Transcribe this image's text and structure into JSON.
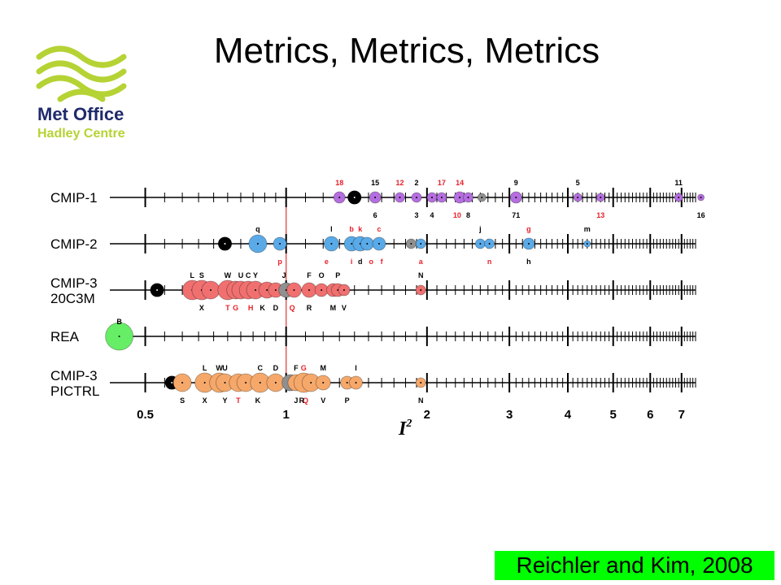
{
  "slide": {
    "title": "Metrics, Metrics, Metrics",
    "logo": {
      "line1": "Met Office",
      "line2": "Hadley Centre",
      "brand_color": "#b5d334",
      "text_color": "#1f2a6b"
    },
    "citation": "Reichler and Kim, 2008",
    "citation_bg": "#00ff00"
  },
  "chart_data": {
    "type": "scatter",
    "title": "",
    "xlabel": "I²",
    "ylabel": "",
    "x_scale": "log",
    "xlim": [
      0.42,
      7.5
    ],
    "x_ticks": [
      0.5,
      1,
      2,
      3,
      4,
      5,
      6,
      7
    ],
    "x_tick_labels": [
      "0.5",
      "1",
      "2",
      "3",
      "4",
      "5",
      "6",
      "7"
    ],
    "reference_line_x": 1,
    "colors": {
      "cmip1": "#b56ee0",
      "cmip2": "#5aaae8",
      "cmip3_20c3m": "#f07070",
      "rea": "#66ee66",
      "cmip3_pictrl": "#f5a86a",
      "multimodel_mean": "#000000",
      "median_model": "#909090",
      "reference_line": "#e05a5a",
      "label_red": "#e8202a"
    },
    "rows": [
      {
        "name": "CMIP-1",
        "color_key": "cmip1",
        "points": [
          {
            "label": "18",
            "x": 1.3,
            "r": 7,
            "label_pos": "top",
            "label_color": "red"
          },
          {
            "label": "",
            "x": 1.4,
            "r": 8,
            "kind": "mean"
          },
          {
            "label": "15",
            "x": 1.55,
            "r": 7,
            "label_pos": "top"
          },
          {
            "label": "6",
            "x": 1.55,
            "r": 0,
            "label_pos": "bottom"
          },
          {
            "label": "12",
            "x": 1.75,
            "r": 6,
            "label_pos": "top",
            "label_color": "red"
          },
          {
            "label": "2",
            "x": 1.9,
            "r": 6,
            "label_pos": "top"
          },
          {
            "label": "3",
            "x": 1.9,
            "r": 0,
            "label_pos": "bottom"
          },
          {
            "label": "",
            "x": 2.05,
            "r": 6
          },
          {
            "label": "4",
            "x": 2.05,
            "r": 0,
            "label_pos": "bottom"
          },
          {
            "label": "17",
            "x": 2.15,
            "r": 6,
            "label_pos": "top",
            "label_color": "red"
          },
          {
            "label": "14",
            "x": 2.35,
            "r": 7,
            "label_pos": "top",
            "label_color": "red"
          },
          {
            "label": "10",
            "x": 2.32,
            "r": 0,
            "label_pos": "bottom",
            "label_color": "red"
          },
          {
            "label": "8",
            "x": 2.45,
            "r": 6,
            "label_pos": "bottom"
          },
          {
            "label": "",
            "x": 2.62,
            "r": 5,
            "kind": "median"
          },
          {
            "label": "9",
            "x": 3.1,
            "r": 7,
            "label_pos": "top"
          },
          {
            "label": "71",
            "x": 3.1,
            "r": 0,
            "label_pos": "bottom"
          },
          {
            "label": "5",
            "x": 4.2,
            "r": 5,
            "label_pos": "top"
          },
          {
            "label": "13",
            "x": 4.7,
            "r": 5,
            "label_pos": "bottom",
            "label_color": "red"
          },
          {
            "label": "11",
            "x": 6.9,
            "r": 5,
            "label_pos": "top"
          },
          {
            "label": "16",
            "x": 7.7,
            "r": 4,
            "label_pos": "bottom"
          }
        ]
      },
      {
        "name": "CMIP-2",
        "color_key": "cmip2",
        "points": [
          {
            "label": "",
            "x": 0.74,
            "r": 8,
            "kind": "mean"
          },
          {
            "label": "q",
            "x": 0.87,
            "r": 11,
            "label_pos": "top"
          },
          {
            "label": "p",
            "x": 0.97,
            "r": 8,
            "label_pos": "bottom",
            "label_color": "red"
          },
          {
            "label": "l",
            "x": 1.25,
            "r": 9,
            "label_pos": "top"
          },
          {
            "label": "e",
            "x": 1.22,
            "r": 0,
            "label_pos": "bottom",
            "label_color": "red"
          },
          {
            "label": "b",
            "x": 1.38,
            "r": 9,
            "label_pos": "top",
            "label_color": "red"
          },
          {
            "label": "i",
            "x": 1.38,
            "r": 0,
            "label_pos": "bottom",
            "label_color": "red"
          },
          {
            "label": "k",
            "x": 1.44,
            "r": 9,
            "label_pos": "top",
            "label_color": "red"
          },
          {
            "label": "d",
            "x": 1.44,
            "r": 0,
            "label_pos": "bottom"
          },
          {
            "label": "",
            "x": 1.49,
            "r": 8
          },
          {
            "label": "o",
            "x": 1.52,
            "r": 0,
            "label_pos": "bottom",
            "label_color": "red"
          },
          {
            "label": "c",
            "x": 1.58,
            "r": 8,
            "label_pos": "top",
            "label_color": "red"
          },
          {
            "label": "f",
            "x": 1.6,
            "r": 0,
            "label_pos": "bottom",
            "label_color": "red"
          },
          {
            "label": "",
            "x": 1.85,
            "r": 6,
            "kind": "median"
          },
          {
            "label": "a",
            "x": 1.94,
            "r": 6,
            "label_pos": "bottom",
            "label_color": "red"
          },
          {
            "label": "j",
            "x": 2.6,
            "r": 6,
            "label_pos": "top"
          },
          {
            "label": "",
            "x": 2.72,
            "r": 6
          },
          {
            "label": "n",
            "x": 2.72,
            "r": 0,
            "label_pos": "bottom",
            "label_color": "red"
          },
          {
            "label": "g",
            "x": 3.3,
            "r": 7,
            "label_pos": "top",
            "label_color": "red"
          },
          {
            "label": "h",
            "x": 3.3,
            "r": 0,
            "label_pos": "bottom"
          },
          {
            "label": "m",
            "x": 4.4,
            "r": 4,
            "label_pos": "top"
          }
        ]
      },
      {
        "name": "CMIP-3\n20C3M",
        "color_key": "cmip3_20c3m",
        "points": [
          {
            "label": "",
            "x": 0.53,
            "r": 8,
            "kind": "mean"
          },
          {
            "label": "L",
            "x": 0.63,
            "r": 12,
            "label_pos": "top"
          },
          {
            "label": "S",
            "x": 0.66,
            "r": 12,
            "label_pos": "top"
          },
          {
            "label": "X",
            "x": 0.66,
            "r": 0,
            "label_pos": "bottom"
          },
          {
            "label": "",
            "x": 0.69,
            "r": 11
          },
          {
            "label": "W",
            "x": 0.75,
            "r": 12,
            "label_pos": "top"
          },
          {
            "label": "T",
            "x": 0.75,
            "r": 0,
            "label_pos": "bottom",
            "label_color": "red"
          },
          {
            "label": "G",
            "x": 0.78,
            "r": 11,
            "label_pos": "bottom",
            "label_color": "red"
          },
          {
            "label": "U",
            "x": 0.8,
            "r": 11,
            "label_pos": "top"
          },
          {
            "label": "C",
            "x": 0.83,
            "r": 11,
            "label_pos": "top"
          },
          {
            "label": "H",
            "x": 0.84,
            "r": 0,
            "label_pos": "bottom",
            "label_color": "red"
          },
          {
            "label": "Y",
            "x": 0.86,
            "r": 11,
            "label_pos": "top"
          },
          {
            "label": "K",
            "x": 0.89,
            "r": 0,
            "label_pos": "bottom"
          },
          {
            "label": "",
            "x": 0.91,
            "r": 10
          },
          {
            "label": "D",
            "x": 0.95,
            "r": 9,
            "label_pos": "bottom"
          },
          {
            "label": "J",
            "x": 0.99,
            "r": 0,
            "label_pos": "top"
          },
          {
            "label": "",
            "x": 1.0,
            "r": 9,
            "kind": "median"
          },
          {
            "label": "Q",
            "x": 1.03,
            "r": 0,
            "label_pos": "bottom",
            "label_color": "red"
          },
          {
            "label": "",
            "x": 1.04,
            "r": 9
          },
          {
            "label": "F",
            "x": 1.12,
            "r": 9,
            "label_pos": "top"
          },
          {
            "label": "R",
            "x": 1.12,
            "r": 0,
            "label_pos": "bottom"
          },
          {
            "label": "O",
            "x": 1.19,
            "r": 8,
            "label_pos": "top"
          },
          {
            "label": "M",
            "x": 1.26,
            "r": 8,
            "label_pos": "bottom"
          },
          {
            "label": "P",
            "x": 1.29,
            "r": 8,
            "label_pos": "top"
          },
          {
            "label": "V",
            "x": 1.33,
            "r": 7,
            "label_pos": "bottom"
          },
          {
            "label": "N",
            "x": 1.94,
            "r": 6,
            "label_pos": "top"
          }
        ]
      },
      {
        "name": "REA",
        "color_key": "rea",
        "points": [
          {
            "label": "B",
            "x": 0.44,
            "r": 17,
            "label_pos": "top"
          }
        ]
      },
      {
        "name": "CMIP-3\nPICTRL",
        "color_key": "cmip3_pictrl",
        "points": [
          {
            "label": "",
            "x": 0.57,
            "r": 8,
            "kind": "mean"
          },
          {
            "label": "S",
            "x": 0.6,
            "r": 11,
            "label_pos": "bottom"
          },
          {
            "label": "L",
            "x": 0.67,
            "r": 12,
            "label_pos": "top"
          },
          {
            "label": "X",
            "x": 0.67,
            "r": 0,
            "label_pos": "bottom"
          },
          {
            "label": "W",
            "x": 0.72,
            "r": 12,
            "label_pos": "top"
          },
          {
            "label": "U",
            "x": 0.74,
            "r": 0,
            "label_pos": "top"
          },
          {
            "label": "Y",
            "x": 0.74,
            "r": 11,
            "label_pos": "bottom"
          },
          {
            "label": "T",
            "x": 0.79,
            "r": 11,
            "label_pos": "bottom",
            "label_color": "red"
          },
          {
            "label": "",
            "x": 0.82,
            "r": 11
          },
          {
            "label": "C",
            "x": 0.88,
            "r": 12,
            "label_pos": "top"
          },
          {
            "label": "K",
            "x": 0.87,
            "r": 0,
            "label_pos": "bottom"
          },
          {
            "label": "D",
            "x": 0.95,
            "r": 11,
            "label_pos": "top"
          },
          {
            "label": "",
            "x": 1.02,
            "r": 10,
            "kind": "median"
          },
          {
            "label": "F",
            "x": 1.05,
            "r": 10,
            "label_pos": "top"
          },
          {
            "label": "J",
            "x": 1.05,
            "r": 0,
            "label_pos": "bottom"
          },
          {
            "label": "G",
            "x": 1.09,
            "r": 12,
            "label_pos": "top",
            "label_color": "red"
          },
          {
            "label": "Q",
            "x": 1.1,
            "r": 0,
            "label_pos": "bottom",
            "label_color": "red"
          },
          {
            "label": "R",
            "x": 1.08,
            "r": 0,
            "label_pos": "bottom"
          },
          {
            "label": "",
            "x": 1.13,
            "r": 11
          },
          {
            "label": "M",
            "x": 1.2,
            "r": 9,
            "label_pos": "top"
          },
          {
            "label": "V",
            "x": 1.2,
            "r": 0,
            "label_pos": "bottom"
          },
          {
            "label": "P",
            "x": 1.35,
            "r": 8,
            "label_pos": "bottom"
          },
          {
            "label": "I",
            "x": 1.41,
            "r": 8,
            "label_pos": "top"
          },
          {
            "label": "N",
            "x": 1.94,
            "r": 6,
            "label_pos": "bottom"
          }
        ]
      }
    ]
  }
}
